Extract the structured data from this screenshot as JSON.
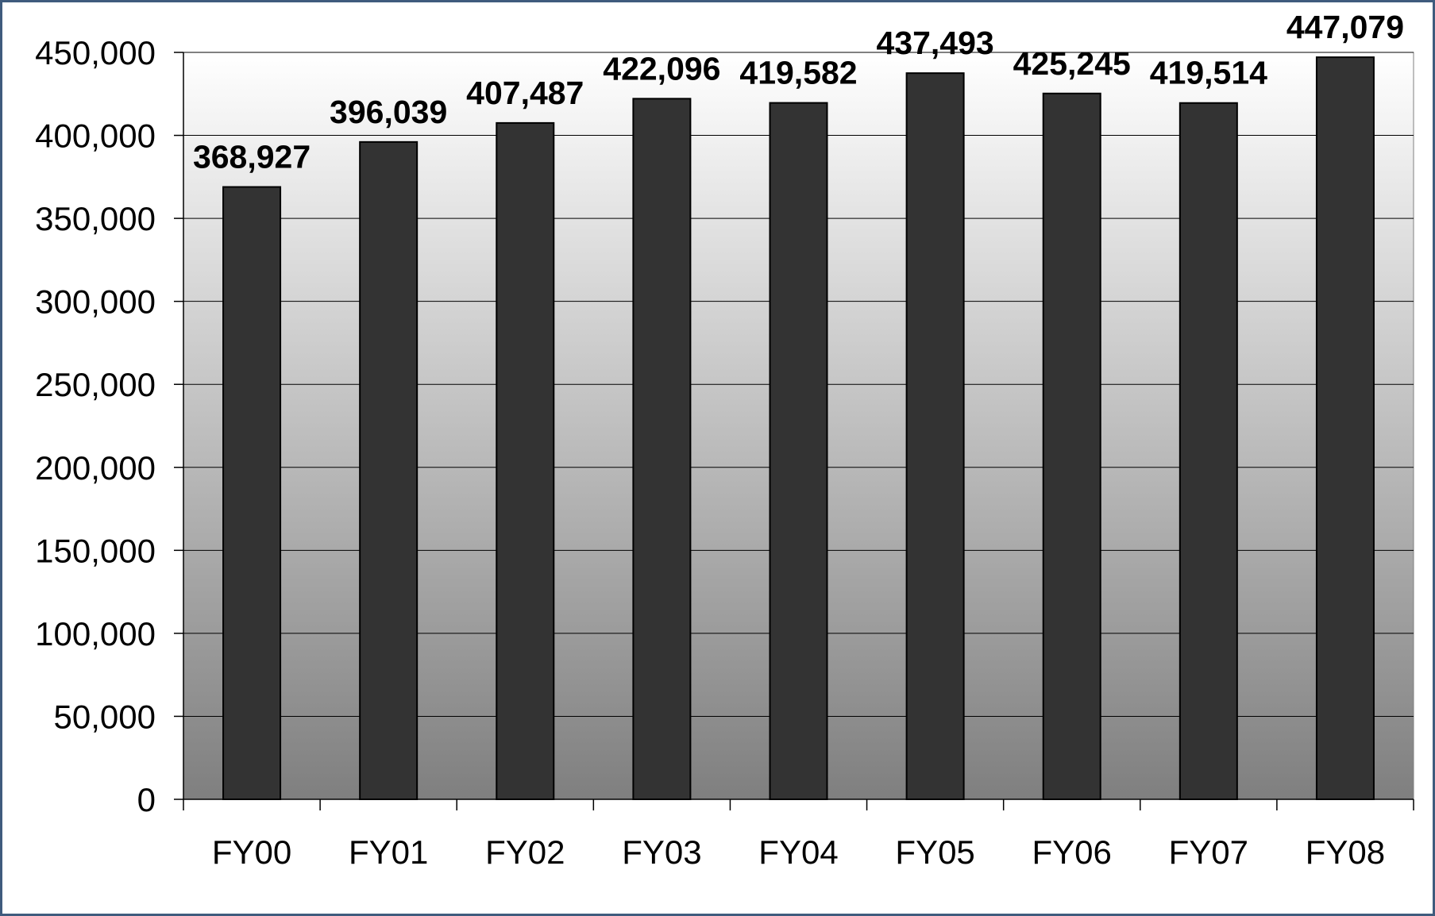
{
  "chart_data": {
    "type": "bar",
    "categories": [
      "FY00",
      "FY01",
      "FY02",
      "FY03",
      "FY04",
      "FY05",
      "FY06",
      "FY07",
      "FY08"
    ],
    "values": [
      368927,
      396039,
      407487,
      422096,
      419582,
      437493,
      425245,
      419514,
      447079
    ],
    "data_labels": [
      "368,927",
      "396,039",
      "407,487",
      "422,096",
      "419,582",
      "437,493",
      "425,245",
      "419,514",
      "447,079"
    ],
    "ylim": [
      0,
      450000
    ],
    "yticks": [
      0,
      50000,
      100000,
      150000,
      200000,
      250000,
      300000,
      350000,
      400000,
      450000
    ],
    "ytick_labels": [
      "0",
      "50,000",
      "100,000",
      "150,000",
      "200,000",
      "250,000",
      "300,000",
      "350,000",
      "400,000",
      "450,000"
    ],
    "title": "",
    "xlabel": "",
    "ylabel": "",
    "grid": true,
    "legend": "none",
    "colors": {
      "bar": "#333333",
      "bar_outline": "#000000",
      "plot_bg_top": "#ffffff",
      "plot_bg_bottom": "#7f7f7f",
      "gridline": "#000000",
      "frame_border": "#3f5b7d"
    }
  }
}
